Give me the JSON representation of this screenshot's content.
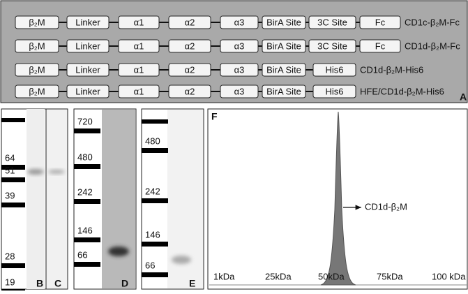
{
  "panel_a": {
    "letter": "A",
    "rows": [
      {
        "parts": [
          "β₂M",
          "Linker",
          "α1",
          "α2",
          "α3",
          "BirA Site",
          "3C Site",
          "Fc"
        ],
        "label": "CD1c-β₂M-Fc"
      },
      {
        "parts": [
          "β₂M",
          "Linker",
          "α1",
          "α2",
          "α3",
          "BirA Site",
          "3C Site",
          "Fc"
        ],
        "label": "CD1d-β₂M-Fc"
      },
      {
        "parts": [
          "β₂M",
          "Linker",
          "α1",
          "α2",
          "α3",
          "BirA Site",
          "His6"
        ],
        "label": "CD1d-β₂M-His6"
      },
      {
        "parts": [
          "β₂M",
          "Linker",
          "α1",
          "α2",
          "α3",
          "BirA Site",
          "His6"
        ],
        "label": "HFE/CD1d-β₂M-His6"
      }
    ]
  },
  "panel_bc": {
    "markers": [
      "64",
      "51",
      "39",
      "28",
      "19"
    ],
    "letters": [
      "B",
      "C"
    ]
  },
  "panel_d": {
    "markers": [
      "720",
      "480",
      "242",
      "146",
      "66"
    ],
    "letter": "D"
  },
  "panel_e": {
    "markers": [
      "480",
      "242",
      "146",
      "66"
    ],
    "letter": "E"
  },
  "panel_f": {
    "letter": "F",
    "annotation": "CD1d-β₂M",
    "x_labels": [
      "1kDa",
      "25kDa",
      "50kDa",
      "75kDa",
      "100 kDa"
    ]
  }
}
